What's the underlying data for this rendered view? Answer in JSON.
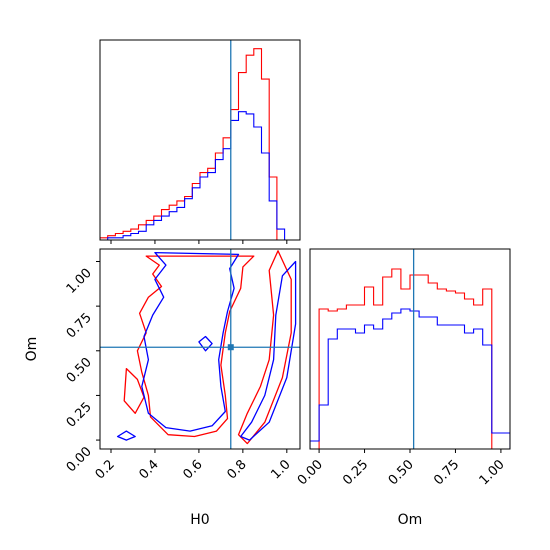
{
  "chart_data": [
    {
      "type": "histogram",
      "panel": "H0 marginal",
      "xlim": [
        0.15,
        1.06
      ],
      "bins_start": 0.15,
      "bin_width": 0.035,
      "series": [
        {
          "color": "#ff0000",
          "values": [
            1,
            2,
            3,
            4,
            5,
            7,
            9,
            11,
            14,
            16,
            18,
            20,
            26,
            31,
            33,
            40,
            47,
            60,
            77,
            85,
            88,
            74,
            29,
            0,
            0,
            0
          ]
        },
        {
          "color": "#0000ff",
          "values": [
            0,
            1,
            1,
            2,
            3,
            4,
            7,
            9,
            11,
            13,
            15,
            19,
            24,
            29,
            31,
            37,
            42,
            55,
            59,
            58,
            52,
            40,
            18,
            5,
            0,
            0
          ]
        }
      ],
      "truth_x": 0.745,
      "truth_color": "#1f77b4"
    },
    {
      "type": "contour",
      "panel": "H0 vs Om",
      "xlabel": "H0",
      "ylabel": "Om",
      "xlim": [
        0.15,
        1.06
      ],
      "ylim": [
        -0.05,
        1.07
      ],
      "xticks": [
        "0.2",
        "0.4",
        "0.6",
        "0.8",
        "1.0"
      ],
      "yticks": [
        "0.00",
        "0.25",
        "0.50",
        "0.75",
        "1.00"
      ],
      "truth": {
        "x": 0.745,
        "y": 0.52
      },
      "series": [
        {
          "color": "#ff0000",
          "contours": [
            [
              [
                0.36,
                1.03
              ],
              [
                0.42,
                0.98
              ],
              [
                0.39,
                0.93
              ],
              [
                0.43,
                0.86
              ],
              [
                0.37,
                0.8
              ],
              [
                0.33,
                0.71
              ],
              [
                0.36,
                0.6
              ],
              [
                0.32,
                0.5
              ],
              [
                0.34,
                0.38
              ],
              [
                0.37,
                0.25
              ],
              [
                0.38,
                0.13
              ],
              [
                0.46,
                0.03
              ],
              [
                0.58,
                0.02
              ],
              [
                0.68,
                0.05
              ],
              [
                0.73,
                0.12
              ],
              [
                0.72,
                0.25
              ],
              [
                0.7,
                0.42
              ],
              [
                0.72,
                0.6
              ],
              [
                0.74,
                0.72
              ],
              [
                0.79,
                0.85
              ],
              [
                0.8,
                0.97
              ],
              [
                0.85,
                1.03
              ]
            ],
            [
              [
                0.96,
                1.06
              ],
              [
                0.92,
                0.95
              ],
              [
                0.94,
                0.7
              ],
              [
                0.92,
                0.45
              ],
              [
                0.88,
                0.3
              ],
              [
                0.82,
                0.15
              ],
              [
                0.78,
                0.03
              ],
              [
                0.82,
                -0.02
              ],
              [
                0.9,
                0.1
              ],
              [
                0.98,
                0.35
              ],
              [
                1.02,
                0.6
              ],
              [
                1.02,
                0.9
              ]
            ],
            [
              [
                0.27,
                0.4
              ],
              [
                0.32,
                0.34
              ],
              [
                0.35,
                0.24
              ],
              [
                0.31,
                0.15
              ],
              [
                0.26,
                0.22
              ]
            ]
          ]
        },
        {
          "color": "#0000ff",
          "contours": [
            [
              [
                0.4,
                1.05
              ],
              [
                0.45,
                0.98
              ],
              [
                0.4,
                0.9
              ],
              [
                0.44,
                0.8
              ],
              [
                0.39,
                0.7
              ],
              [
                0.35,
                0.58
              ],
              [
                0.37,
                0.45
              ],
              [
                0.34,
                0.3
              ],
              [
                0.37,
                0.15
              ],
              [
                0.45,
                0.07
              ],
              [
                0.56,
                0.05
              ],
              [
                0.66,
                0.08
              ],
              [
                0.72,
                0.16
              ],
              [
                0.7,
                0.3
              ],
              [
                0.69,
                0.45
              ],
              [
                0.71,
                0.6
              ],
              [
                0.73,
                0.72
              ],
              [
                0.76,
                0.85
              ],
              [
                0.74,
                0.96
              ],
              [
                0.78,
                1.04
              ]
            ],
            [
              [
                1.04,
                1.0
              ],
              [
                0.98,
                0.92
              ],
              [
                0.95,
                0.7
              ],
              [
                0.94,
                0.45
              ],
              [
                0.9,
                0.25
              ],
              [
                0.84,
                0.1
              ],
              [
                0.79,
                0.02
              ],
              [
                0.83,
                0.0
              ],
              [
                0.92,
                0.1
              ],
              [
                1.0,
                0.35
              ],
              [
                1.04,
                0.65
              ]
            ],
            [
              [
                0.6,
                0.55
              ],
              [
                0.63,
                0.5
              ],
              [
                0.66,
                0.54
              ],
              [
                0.63,
                0.58
              ]
            ],
            [
              [
                0.23,
                0.02
              ],
              [
                0.27,
                0.05
              ],
              [
                0.31,
                0.02
              ],
              [
                0.27,
                0.0
              ]
            ]
          ]
        }
      ]
    },
    {
      "type": "histogram",
      "panel": "Om marginal",
      "xlabel": "Om",
      "xlim": [
        -0.05,
        1.05
      ],
      "xticks": [
        "0.00",
        "0.25",
        "0.50",
        "0.75",
        "1.00"
      ],
      "bins_start": -0.05,
      "bin_width": 0.05,
      "series": [
        {
          "color": "#ff0000",
          "values": [
            0,
            70,
            69,
            70,
            72,
            72,
            81,
            72,
            86,
            90,
            80,
            87,
            87,
            83,
            80,
            79,
            78,
            75,
            72,
            80,
            0,
            0
          ]
        },
        {
          "color": "#0000ff",
          "values": [
            4,
            22,
            55,
            60,
            60,
            58,
            62,
            60,
            65,
            68,
            70,
            69,
            66,
            66,
            62,
            62,
            62,
            58,
            60,
            52,
            8,
            8
          ]
        }
      ],
      "truth_x": 0.52,
      "truth_color": "#1f77b4"
    }
  ]
}
